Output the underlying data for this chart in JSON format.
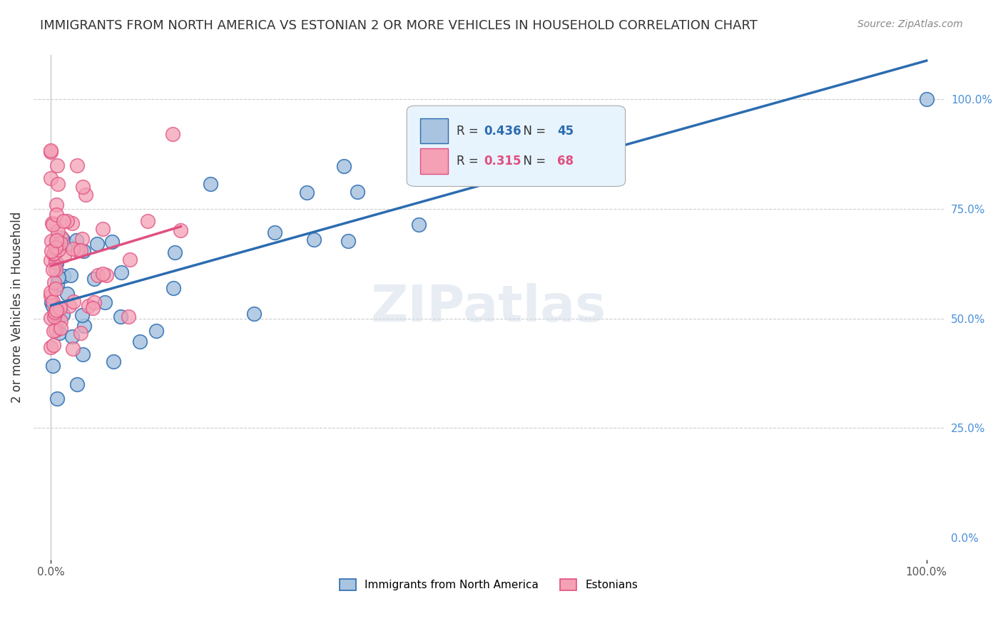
{
  "title": "IMMIGRANTS FROM NORTH AMERICA VS ESTONIAN 2 OR MORE VEHICLES IN HOUSEHOLD CORRELATION CHART",
  "source": "Source: ZipAtlas.com",
  "ylabel": "2 or more Vehicles in Household",
  "blue_R": 0.436,
  "blue_N": 45,
  "pink_R": 0.315,
  "pink_N": 68,
  "blue_color": "#a8c4e0",
  "blue_line_color": "#2b6cb0",
  "pink_color": "#f4a0b5",
  "pink_line_color": "#e05080",
  "background_color": "#ffffff",
  "title_fontsize": 13,
  "source_fontsize": 10
}
